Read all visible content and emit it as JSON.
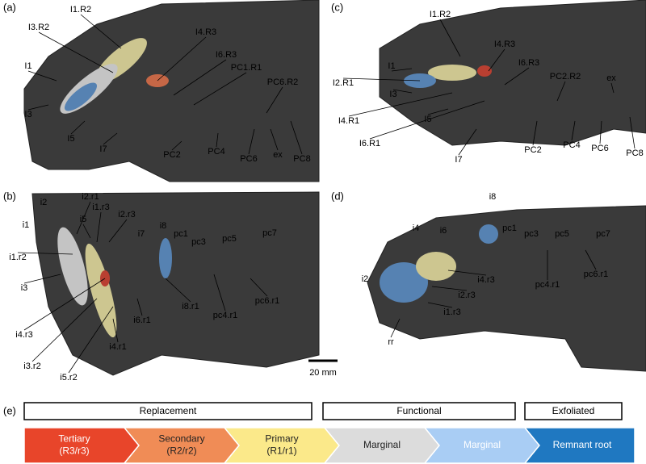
{
  "panels": [
    {
      "letter": "(a)",
      "labels": [
        "I1.R2",
        "I3.R2",
        "I4.R3",
        "I6.R3",
        "PC1.R1",
        "PC6.R2",
        "I1",
        "I3",
        "I5",
        "I7",
        "PC2",
        "PC4",
        "PC6",
        "ex",
        "PC8"
      ]
    },
    {
      "letter": "(b)",
      "labels": [
        "i2",
        "i2.r1",
        "i1",
        "i5",
        "i1.r3",
        "i2.r3",
        "i7",
        "i8",
        "pc1",
        "pc3",
        "pc5",
        "pc7",
        "i1.r2",
        "i3",
        "i4.r3",
        "i3.r2",
        "i5.r2",
        "i4.r1",
        "i6.r1",
        "i8.r1",
        "pc4.r1",
        "pc6.r1"
      ]
    },
    {
      "letter": "(c)",
      "labels": [
        "I1.R2",
        "I4.R3",
        "I6.R3",
        "I1",
        "I2.R1",
        "I3",
        "I4.R1",
        "I5",
        "I6.R1",
        "I7",
        "PC2.R2",
        "ex",
        "PC2",
        "PC4",
        "PC6",
        "PC8"
      ]
    },
    {
      "letter": "(d)",
      "labels": [
        "i8",
        "i4",
        "i6",
        "pc1",
        "pc3",
        "pc5",
        "pc7",
        "pc4.r1",
        "pc6.r1",
        "i4.r3",
        "i2",
        "i2.r3",
        "i1.r3",
        "rr"
      ]
    }
  ],
  "scale_bar": "20 mm",
  "legend": {
    "letter": "(e)",
    "groups": [
      "Replacement",
      "Functional",
      "Exfoliated"
    ],
    "stages": [
      {
        "lines": [
          "Tertiary",
          "(R3/r3)"
        ],
        "color": "#e8452a"
      },
      {
        "lines": [
          "Secondary",
          "(R2/r2)"
        ],
        "color": "#f08c56"
      },
      {
        "lines": [
          "Primary",
          "(R1/r1)"
        ],
        "color": "#fbe98a"
      },
      {
        "lines": [
          "Marginal"
        ],
        "color": "#dcdcdc"
      },
      {
        "lines": [
          "Marginal"
        ],
        "color": "#a9cdf4"
      },
      {
        "lines": [
          "Remnant root"
        ],
        "color": "#1f78c1"
      }
    ]
  }
}
